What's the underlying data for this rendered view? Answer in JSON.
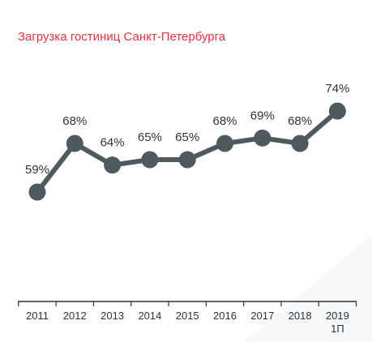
{
  "colors": {
    "title": "#e8303f",
    "line": "#4f5a5e",
    "marker": "#4f5a5e",
    "axis": "#2d3438",
    "text": "#2d3438",
    "background_shape": "#f6f7f8"
  },
  "chart_data": {
    "type": "line",
    "title": "Загрузка гостиниц Санкт-Петербурга",
    "xlabel": "",
    "ylabel": "",
    "categories": [
      "2011",
      "2012",
      "2013",
      "2014",
      "2015",
      "2016",
      "2017",
      "2018",
      "2019 1П"
    ],
    "series": [
      {
        "values": [
          59,
          68,
          64,
          65,
          65,
          68,
          69,
          68,
          74
        ],
        "data_labels": [
          "59%",
          "68%",
          "64%",
          "65%",
          "65%",
          "68%",
          "69%",
          "68%",
          "74%"
        ]
      }
    ],
    "ylim": [
      50,
      80
    ],
    "grid": false,
    "legend": "none"
  }
}
